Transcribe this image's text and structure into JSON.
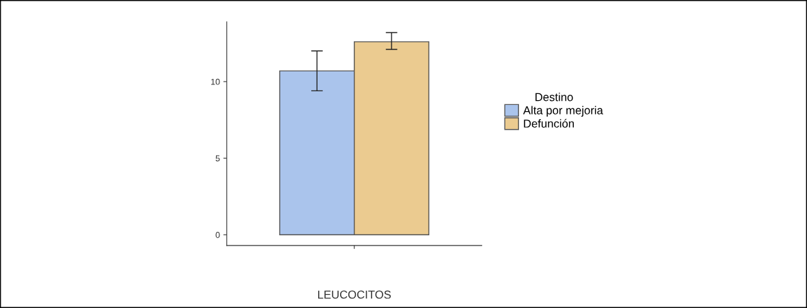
{
  "chart_data": {
    "type": "bar",
    "categories": [
      null
    ],
    "xlabel": "LEUCOCITOS",
    "legend_title": "Destino",
    "series": [
      {
        "name": "Alta por mejoria",
        "color": "#aac4ec",
        "values": [
          10.7
        ],
        "errors": [
          [
            9.4,
            12.0
          ]
        ]
      },
      {
        "name": "Defunción",
        "color": "#ebcb90",
        "values": [
          12.6
        ],
        "errors": [
          [
            12.1,
            13.2
          ]
        ]
      }
    ],
    "ylim": [
      -0.7,
      13.9
    ],
    "yticks": [
      0,
      5,
      10
    ],
    "grid": false,
    "legend": "right"
  }
}
